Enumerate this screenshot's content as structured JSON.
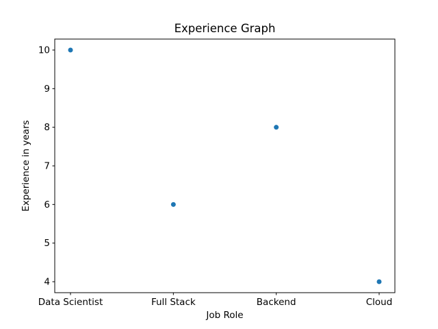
{
  "figure": {
    "background": "#ffffff",
    "text_color": "#000000",
    "spine_color": "#000000"
  },
  "chart_data": {
    "type": "scatter",
    "title": "Experience Graph",
    "xlabel": "Job Role",
    "ylabel": "Experience in years",
    "categories": [
      "Data Scientist",
      "Full Stack",
      "Backend",
      "Cloud"
    ],
    "values": [
      10,
      6,
      8,
      4
    ],
    "yticks": [
      4,
      5,
      6,
      7,
      8,
      9,
      10
    ],
    "ylim": [
      3.716,
      10.284
    ],
    "marker_color": "#1f77b4",
    "marker_radius_px": 3.5,
    "grid": false,
    "legend": "none"
  }
}
